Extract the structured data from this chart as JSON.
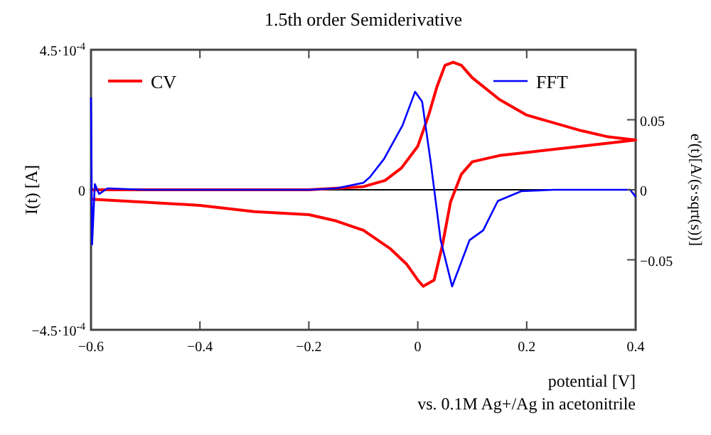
{
  "chart_data": {
    "type": "line",
    "title": "1.5th order Semiderivative",
    "xlabel": "potential [V]",
    "ylabel": "I(t) [A]",
    "y2label": "e'(t)[A/(s·sqrt(s))]",
    "annotations": [
      "vs. 0.1M Ag+/Ag in acetonitrile"
    ],
    "xlim": [
      -0.6,
      0.4
    ],
    "xticks": [
      -0.6,
      -0.4,
      -0.2,
      0,
      0.2,
      0.4
    ],
    "ylim": [
      -0.00045,
      0.00045
    ],
    "yticks": [
      {
        "value": -0.00045,
        "label": "−4.5·10$^{-4}$"
      },
      0,
      {
        "value": 0.00045,
        "label": "4.5·10$^{-4}$"
      }
    ],
    "y2lim": [
      -0.1,
      0.1
    ],
    "y2ticks": [
      -0.05,
      0,
      0.05
    ],
    "ref_lines": [
      {
        "axis": "y",
        "value": 0,
        "color": "#000000"
      }
    ],
    "legend": "top",
    "marker": "none",
    "line_style": "solid",
    "series": [
      {
        "name": "CV",
        "color": "#ff0000",
        "x": [
          -0.6,
          -0.5,
          -0.4,
          -0.3,
          -0.2,
          -0.15,
          -0.1,
          -0.05,
          -0.02,
          0,
          0.01,
          0.03,
          0.045,
          0.06,
          0.08,
          0.1,
          0.15,
          0.2,
          0.3,
          0.4,
          0.35,
          0.3,
          0.2,
          0.15,
          0.1,
          0.08,
          0.065,
          0.05,
          0.035,
          0.02,
          0,
          -0.03,
          -0.06,
          -0.1,
          -0.2,
          -0.4,
          -0.6
        ],
        "values": [
          -3e-05,
          -4e-05,
          -5e-05,
          -7e-05,
          -8e-05,
          -0.0001,
          -0.00013,
          -0.00019,
          -0.00024,
          -0.00029,
          -0.00031,
          -0.00029,
          -0.00018,
          -4e-05,
          5e-05,
          9e-05,
          0.00011,
          0.00012,
          0.00014,
          0.00016,
          0.00017,
          0.00019,
          0.00024,
          0.00029,
          0.00036,
          0.0004,
          0.00041,
          0.0004,
          0.00033,
          0.00024,
          0.00014,
          7e-05,
          3e-05,
          1e-05,
          0,
          0,
          0
        ]
      },
      {
        "name": "FFT",
        "color": "#0000ff",
        "axis": "y2",
        "x": [
          -0.6,
          -0.598,
          -0.593,
          -0.585,
          -0.57,
          -0.5,
          -0.4,
          -0.3,
          -0.2,
          -0.15,
          -0.1,
          -0.088,
          -0.062,
          -0.028,
          -0.005,
          0.008,
          0.024,
          0.042,
          0.063,
          0.095,
          0.12,
          0.147,
          0.19,
          0.25,
          0.3,
          0.35,
          0.39,
          0.4
        ],
        "values": [
          0.066,
          -0.039,
          0.004,
          -0.003,
          0.001,
          0,
          0,
          0,
          0,
          0.001,
          0.005,
          0.009,
          0.022,
          0.046,
          0.07,
          0.063,
          0.019,
          -0.036,
          -0.069,
          -0.036,
          -0.029,
          -0.008,
          -0.001,
          0,
          0,
          0,
          0,
          -0.005
        ]
      }
    ]
  }
}
